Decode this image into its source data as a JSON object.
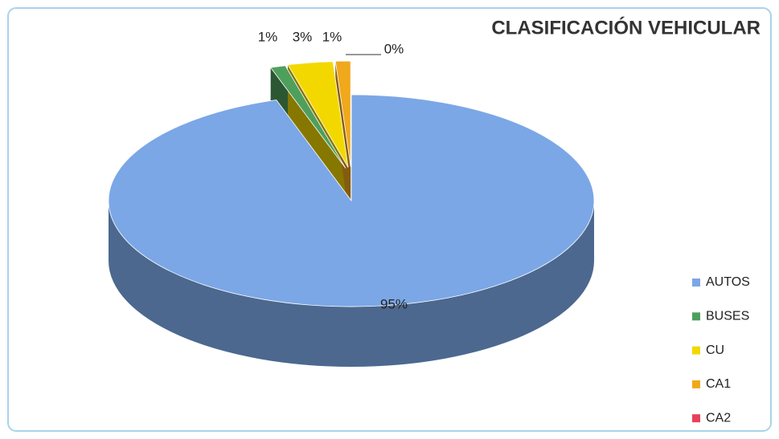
{
  "chart_data": {
    "type": "pie3d",
    "title": "CLASIFICACIÓN VEHICULAR",
    "categories": [
      "AUTOS",
      "BUSES",
      "CU",
      "CA1",
      "CA2"
    ],
    "values": [
      95,
      1,
      3,
      1,
      0
    ],
    "value_labels": [
      "95%",
      "1%",
      "3%",
      "1%",
      "0%"
    ],
    "colors": [
      "#7ba7e6",
      "#4f9f5c",
      "#f3d800",
      "#f0a81c",
      "#e8405a"
    ],
    "legend": "right"
  }
}
